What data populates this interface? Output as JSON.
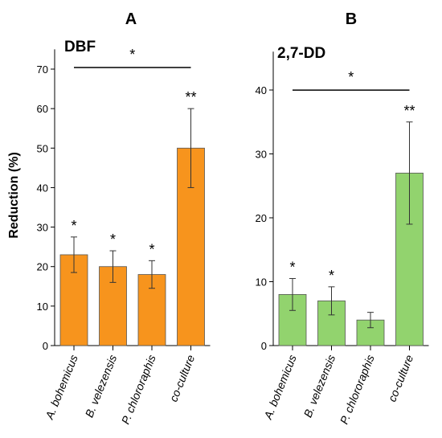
{
  "chart_data": [
    {
      "type": "bar",
      "panel_label": "A",
      "title": "DBF",
      "ylabel": "Reduction (%)",
      "xlabel": "",
      "ylim": [
        0,
        75
      ],
      "yticks": [
        0,
        10,
        20,
        30,
        40,
        50,
        60,
        70
      ],
      "categories": [
        "A. bohemicus",
        "B. velezensis",
        "P. chlororaphis",
        "co-culture"
      ],
      "values": [
        23,
        20,
        18,
        50
      ],
      "error": [
        4.5,
        4,
        3.5,
        10
      ],
      "bar_color": "#f7941d",
      "bar_significance": [
        "*",
        "*",
        "*",
        "**"
      ],
      "comparison": {
        "from": "A. bohemicus",
        "to": "co-culture",
        "label": "*",
        "y": 70
      },
      "grid": false
    },
    {
      "type": "bar",
      "panel_label": "B",
      "title": "2,7-DD",
      "ylabel": "",
      "xlabel": "",
      "ylim": [
        0,
        46
      ],
      "yticks": [
        0,
        10,
        20,
        30,
        40
      ],
      "categories": [
        "A. bohemicus",
        "B. velezensis",
        "P. chlororaphis",
        "co-culture"
      ],
      "values": [
        8,
        7,
        4,
        27
      ],
      "error": [
        2.5,
        2.2,
        1.2,
        8
      ],
      "bar_color": "#92d36e",
      "bar_significance": [
        "*",
        "*",
        "",
        "**"
      ],
      "comparison": {
        "from": "A. bohemicus",
        "to": "co-culture",
        "label": "*",
        "y": 42
      },
      "grid": false
    }
  ]
}
